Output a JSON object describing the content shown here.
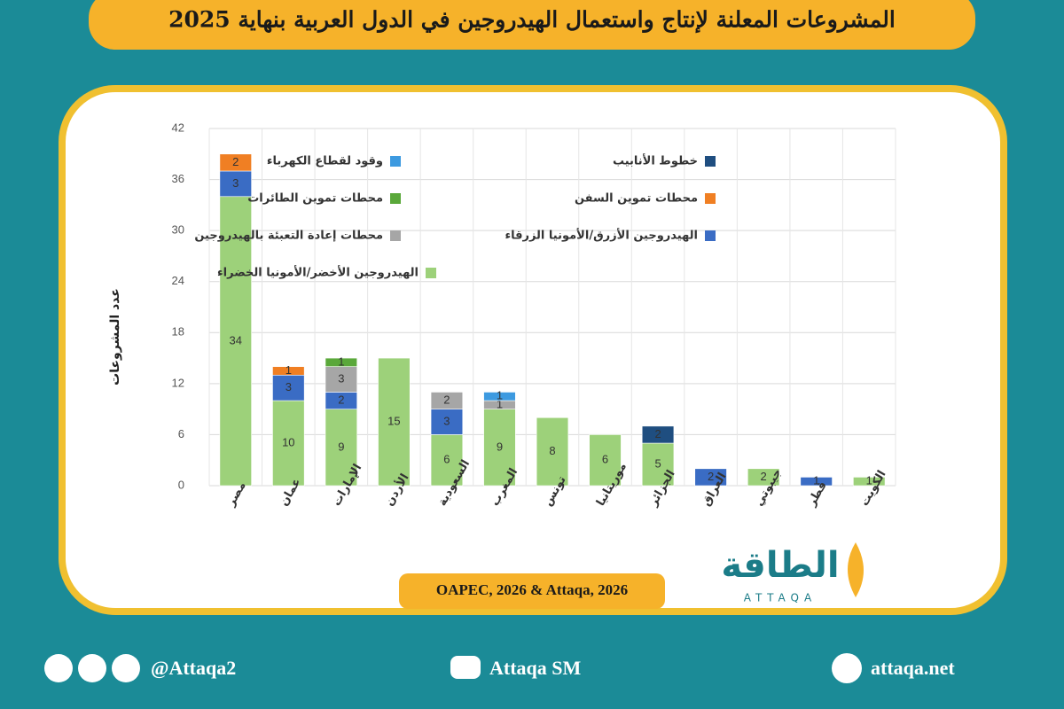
{
  "chart_data": {
    "type": "stacked_bar",
    "title": "المشروعات المعلنة لإنتاج واستعمال الهيدروجين في الدول العربية بنهاية 2025",
    "y_label": "عدد المشروعات",
    "source": "OAPEC, 2026 & Attaqa, 2026",
    "logo": "الطاقة",
    "logo_sub": "ATTAQA",
    "social": "@Attaqa2",
    "youtube": "Attaqa SM",
    "website": "attaqa.net",
    "categories": [
      "مصر",
      "عمان",
      "الإمارات",
      "الأردن",
      "السعودية",
      "المغرب",
      "تونس",
      "موريتانيا",
      "الجزائر",
      "العراق",
      "جيبوتي",
      "قطر",
      "الكويت"
    ],
    "series": [
      {
        "name": "الهيدروجين الأخضر/الأمونيا الخضراء",
        "color": "#9dd17a",
        "values": [
          34,
          10,
          9,
          15,
          6,
          9,
          8,
          6,
          5,
          null,
          2,
          null,
          1
        ]
      },
      {
        "name": "الهيدروجين الأزرق/الأمونيا الزرقاء",
        "color": "#3a6cc4",
        "values": [
          3,
          3,
          2,
          null,
          3,
          null,
          null,
          null,
          null,
          2,
          null,
          1,
          null
        ]
      },
      {
        "name": "محطات إعادة التعبئة بالهيدروجين",
        "color": "#a6a6a6",
        "values": [
          null,
          null,
          3,
          null,
          2,
          1,
          null,
          null,
          null,
          null,
          null,
          null,
          null
        ]
      },
      {
        "name": "محطات تموين الطائرات",
        "color": "#5aa83a",
        "values": [
          null,
          null,
          1,
          null,
          null,
          null,
          null,
          null,
          null,
          null,
          null,
          null,
          null
        ]
      },
      {
        "name": "وقود لقطاع الكهرباء",
        "color": "#3d9ae0",
        "values": [
          null,
          null,
          null,
          null,
          null,
          1,
          null,
          null,
          null,
          null,
          null,
          null,
          null
        ]
      },
      {
        "name": "محطات تموين السفن",
        "color": "#f07f23",
        "values": [
          2,
          1,
          null,
          null,
          null,
          null,
          null,
          null,
          null,
          null,
          null,
          null,
          null
        ]
      },
      {
        "name": "خطوط الأنابيب",
        "color": "#1f4e80",
        "values": [
          null,
          null,
          null,
          null,
          null,
          null,
          null,
          null,
          2,
          null,
          null,
          null,
          null
        ]
      }
    ],
    "ylim": [
      0,
      42
    ],
    "yticks": [
      0,
      6,
      12,
      18,
      24,
      30,
      36,
      42
    ],
    "grid": true
  }
}
